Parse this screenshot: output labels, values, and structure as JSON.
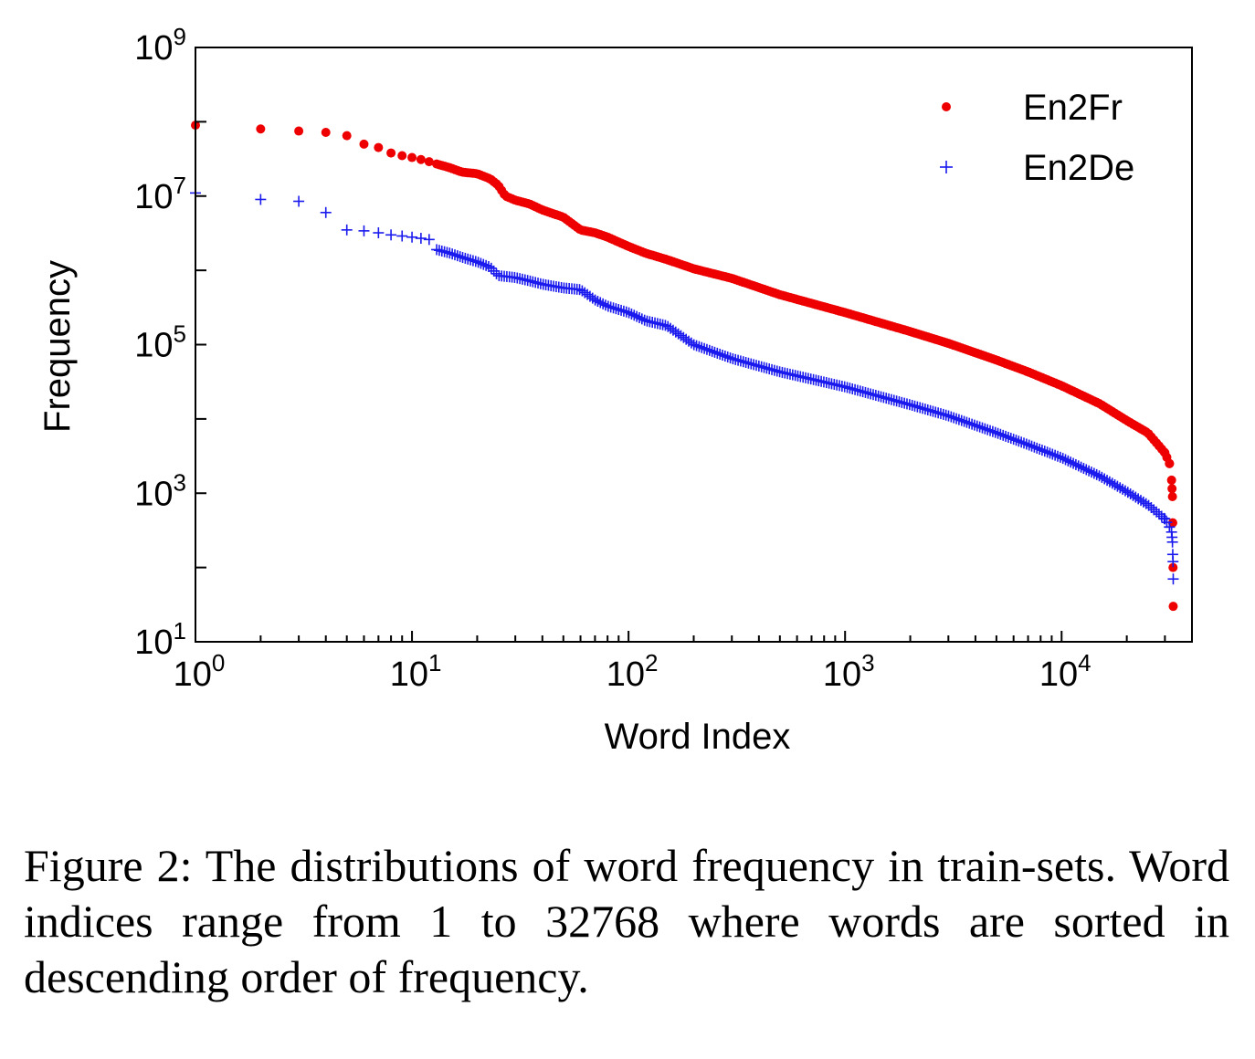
{
  "chart_data": {
    "type": "scatter",
    "x_scale": "log",
    "y_scale": "log",
    "xlabel": "Word Index",
    "ylabel": "Frequency",
    "xlim": [
      1,
      40000
    ],
    "ylim": [
      10,
      1000000000
    ],
    "x_ticks": [
      {
        "value": 1,
        "base": "10",
        "exp": "0"
      },
      {
        "value": 10,
        "base": "10",
        "exp": "1"
      },
      {
        "value": 100,
        "base": "10",
        "exp": "2"
      },
      {
        "value": 1000,
        "base": "10",
        "exp": "3"
      },
      {
        "value": 10000,
        "base": "10",
        "exp": "4"
      }
    ],
    "y_ticks": [
      {
        "value": 10,
        "base": "10",
        "exp": "1"
      },
      {
        "value": 1000,
        "base": "10",
        "exp": "3"
      },
      {
        "value": 100000,
        "base": "10",
        "exp": "5"
      },
      {
        "value": 10000000,
        "base": "10",
        "exp": "7"
      },
      {
        "value": 1000000000,
        "base": "10",
        "exp": "9"
      }
    ],
    "grid": false,
    "legend_position": "top-right",
    "series": [
      {
        "name": "En2Fr",
        "marker": "dot",
        "color": "#ee0000",
        "x": [
          1,
          2,
          3,
          4,
          5,
          6,
          7,
          8,
          9,
          10,
          11,
          12,
          13,
          15,
          17,
          20,
          23,
          25,
          27,
          30,
          35,
          40,
          50,
          60,
          70,
          80,
          100,
          120,
          150,
          200,
          300,
          500,
          1000,
          2000,
          3000,
          5000,
          7000,
          10000,
          15000,
          20000,
          25000,
          30000,
          31500,
          32200,
          32500,
          32600,
          32700,
          32768
        ],
        "y": [
          90000000,
          80000000,
          75000000,
          72000000,
          65000000,
          50000000,
          45000000,
          38000000,
          35000000,
          33000000,
          31000000,
          29000000,
          27000000,
          24000000,
          21000000,
          20000000,
          17000000,
          14000000,
          10000000,
          8800000,
          7800000,
          6500000,
          5200000,
          3500000,
          3200000,
          2800000,
          2100000,
          1700000,
          1400000,
          1050000,
          780000,
          470000,
          270000,
          150000,
          104000,
          62000,
          43000,
          28000,
          16000,
          9500,
          6500,
          3500,
          2500,
          1500,
          900,
          400,
          100,
          30
        ]
      },
      {
        "name": "En2De",
        "marker": "plus",
        "color": "#1a1aee",
        "x": [
          1,
          2,
          3,
          4,
          5,
          6,
          7,
          8,
          9,
          10,
          11,
          12,
          13,
          15,
          17,
          20,
          23,
          25,
          30,
          35,
          40,
          50,
          60,
          70,
          80,
          100,
          120,
          150,
          200,
          300,
          500,
          1000,
          2000,
          3000,
          5000,
          7000,
          10000,
          15000,
          20000,
          25000,
          30000,
          31500,
          32200,
          32500,
          32600,
          32700,
          32768
        ],
        "y": [
          11000000,
          9000000,
          8500000,
          6000000,
          3500000,
          3400000,
          3200000,
          3000000,
          2900000,
          2800000,
          2700000,
          2600000,
          1900000,
          1700000,
          1500000,
          1300000,
          1100000,
          850000,
          800000,
          720000,
          650000,
          580000,
          550000,
          400000,
          330000,
          270000,
          210000,
          180000,
          100000,
          65000,
          43000,
          27000,
          15500,
          11000,
          6500,
          4500,
          3000,
          1700,
          1050,
          700,
          450,
          350,
          300,
          220,
          150,
          120,
          70
        ]
      }
    ]
  },
  "caption": "Figure 2: The distributions of word frequency in train-sets. Word indices range from 1 to 32768 where words are sorted in descending order of frequency."
}
